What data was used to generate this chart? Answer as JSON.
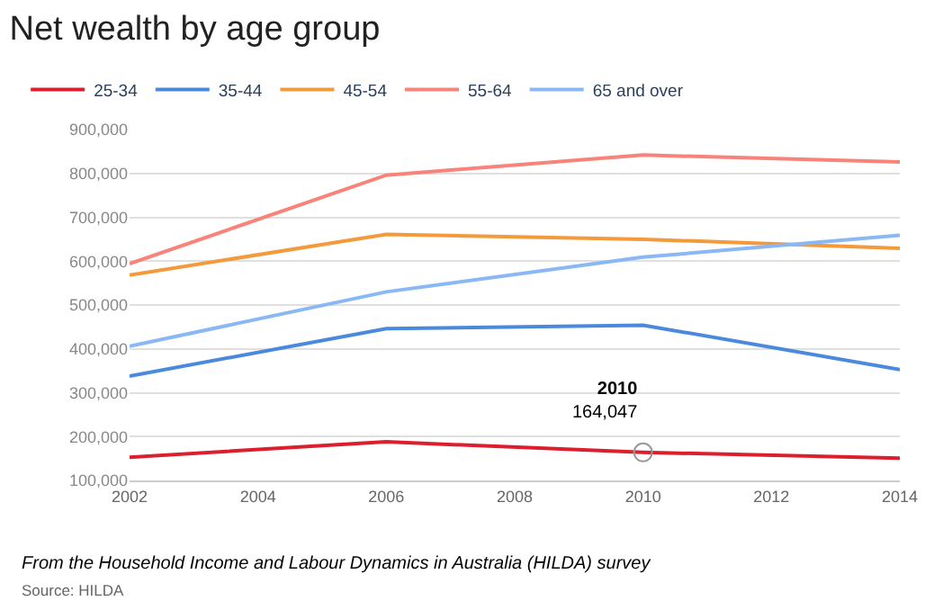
{
  "chart_data": {
    "type": "line",
    "title": "Net wealth by age group",
    "x": [
      2002,
      2006,
      2010,
      2014
    ],
    "series": [
      {
        "name": "25-34",
        "color": "#dc1f2d",
        "values": [
          153000,
          188000,
          164047,
          151000
        ]
      },
      {
        "name": "35-44",
        "color": "#4a89dc",
        "values": [
          338000,
          446000,
          454000,
          353000
        ]
      },
      {
        "name": "45-54",
        "color": "#f39a3d",
        "values": [
          568000,
          661000,
          650000,
          629000
        ]
      },
      {
        "name": "55-64",
        "color": "#f88379",
        "values": [
          594000,
          796000,
          842000,
          826000
        ]
      },
      {
        "name": "65 and over",
        "color": "#8ab8f5",
        "values": [
          406000,
          530000,
          609000,
          659000
        ]
      }
    ],
    "xlim": [
      2002,
      2014
    ],
    "xticks": [
      2002,
      2004,
      2006,
      2008,
      2010,
      2012,
      2014
    ],
    "ylim": [
      100000,
      900000
    ],
    "yticks": [
      {
        "value": 100000,
        "label": "100,000"
      },
      {
        "value": 200000,
        "label": "200,000"
      },
      {
        "value": 300000,
        "label": "300,000"
      },
      {
        "value": 400000,
        "label": "400,000"
      },
      {
        "value": 500000,
        "label": "500,000"
      },
      {
        "value": 600000,
        "label": "600,000"
      },
      {
        "value": 700000,
        "label": "700,000"
      },
      {
        "value": 800000,
        "label": "800,000"
      },
      {
        "value": 900000,
        "label": "900,000"
      }
    ],
    "grid": "y",
    "legend": "top left",
    "marker": "none",
    "line_style": "solid",
    "annotations": [
      {
        "text": "2010\n164,047",
        "x": 2010,
        "y": 164047
      },
      "From the Household Income and Labour Dynamics in Australia (HILDA) survey",
      "Source: HILDA"
    ]
  }
}
